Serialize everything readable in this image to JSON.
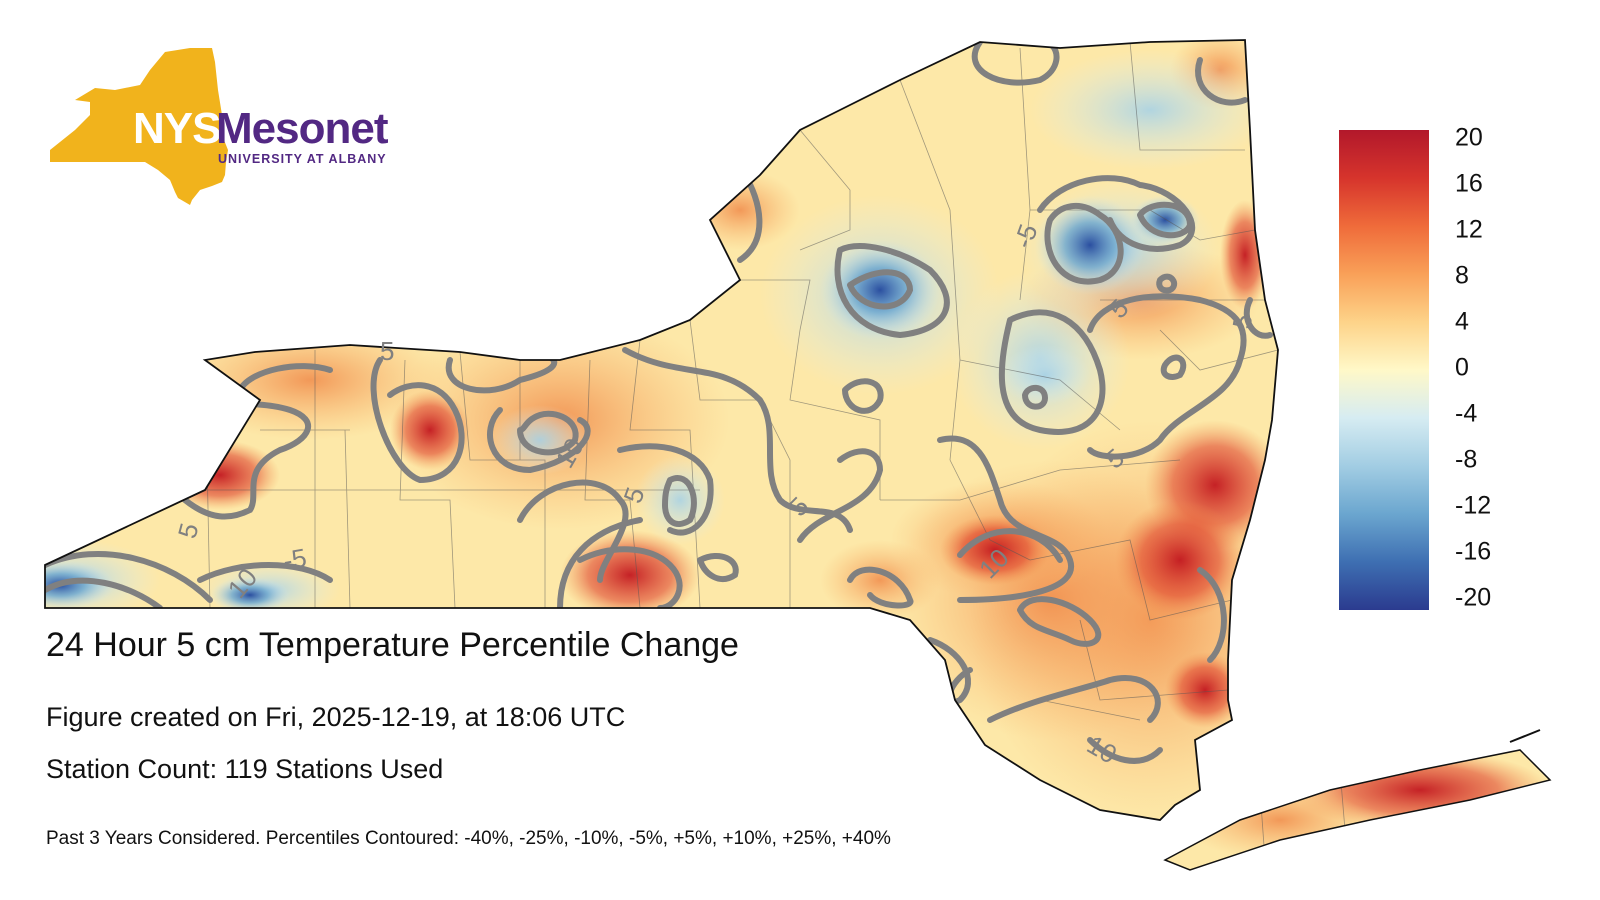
{
  "logo": {
    "nys": "NYS",
    "mesonet": "Mesonet",
    "subtitle": "UNIVERSITY AT ALBANY",
    "colors": {
      "gold": "#F1B31C",
      "purple": "#522883"
    }
  },
  "figure": {
    "title": "24 Hour 5 cm Temperature Percentile Change",
    "created": "Figure created on Fri, 2025-12-19, at 18:06 UTC",
    "station_count": "Station Count: 119 Stations Used",
    "footnote": "Past 3 Years Considered. Percentiles Contoured: -40%, -25%, -10%, -5%, +5%, +10%, +25%, +40%"
  },
  "colorbar": {
    "ticks": [
      "20",
      "16",
      "12",
      "8",
      "4",
      "0",
      "-4",
      "-8",
      "-12",
      "-16",
      "-20"
    ],
    "min": -20,
    "max": 20,
    "colors": [
      "#b2182b",
      "#d6342c",
      "#ef6b3a",
      "#f9a058",
      "#fdd389",
      "#fff8c8",
      "#d6ecf2",
      "#a2cde3",
      "#6ba6cf",
      "#3e6fb2",
      "#2b3b8f"
    ]
  },
  "contour_labels": [
    "-5",
    "-5",
    "5",
    "5",
    "5",
    "5",
    "5",
    "5",
    "10",
    "10",
    "10",
    "10",
    "5"
  ]
}
